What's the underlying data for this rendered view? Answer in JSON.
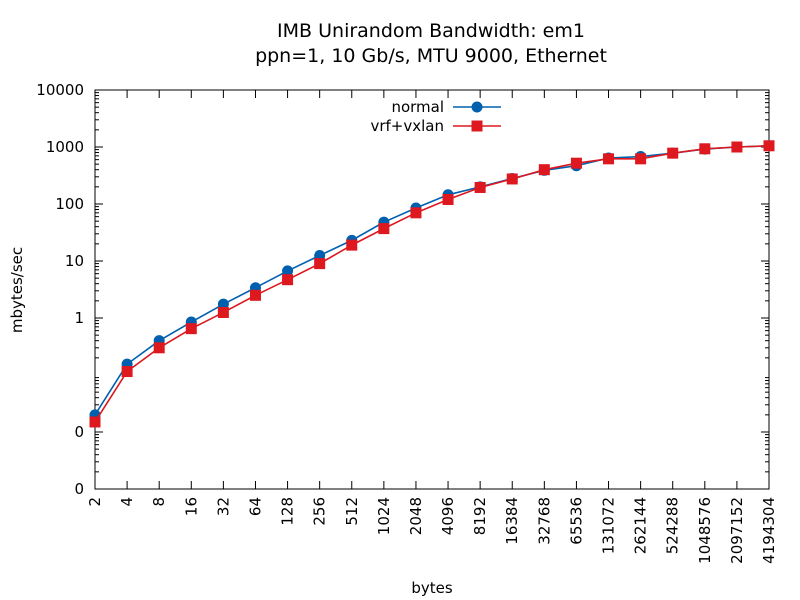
{
  "chart_data": {
    "type": "line",
    "title": "IMB Unirandom Bandwidth: em1",
    "subtitle": "ppn=1, 10 Gb/s, MTU 9000, Ethernet",
    "xlabel": "bytes",
    "ylabel": "mbytes/sec",
    "x_scale": "log2",
    "y_scale": "log10",
    "xlim": [
      2,
      4194304
    ],
    "ylim": [
      0.001,
      10000
    ],
    "x": [
      2,
      4,
      8,
      16,
      32,
      64,
      128,
      256,
      512,
      1024,
      2048,
      4096,
      8192,
      16384,
      32768,
      65536,
      131072,
      262144,
      524288,
      1048576,
      2097152,
      4194304
    ],
    "x_tick_labels": [
      "2",
      "4",
      "8",
      "16",
      "32",
      "64",
      "128",
      "256",
      "512",
      "1024",
      "2048",
      "4096",
      "8192",
      "16384",
      "32768",
      "65536",
      "131072",
      "262144",
      "524288",
      "1048576",
      "2097152",
      "4194304"
    ],
    "y_ticks": [
      0.001,
      0.01,
      1,
      10,
      100,
      1000,
      10000
    ],
    "y_tick_labels": [
      "0",
      "0",
      "1",
      "10",
      "100",
      "1000",
      "10000"
    ],
    "legend_position": "top-center",
    "grid": false,
    "series": [
      {
        "name": "normal",
        "color": "#0060ad",
        "marker": "circle",
        "values": [
          0.02,
          0.155,
          0.4,
          0.85,
          1.75,
          3.4,
          6.7,
          12.5,
          23,
          48,
          85,
          145,
          200,
          280,
          390,
          470,
          640,
          680,
          780,
          920,
          1000,
          1050
        ]
      },
      {
        "name": "vrf+vxlan",
        "color": "#dd181f",
        "marker": "square",
        "values": [
          0.015,
          0.115,
          0.3,
          0.65,
          1.25,
          2.5,
          4.7,
          9,
          19,
          37,
          70,
          120,
          195,
          275,
          400,
          520,
          620,
          620,
          780,
          930,
          1000,
          1050
        ]
      }
    ]
  }
}
